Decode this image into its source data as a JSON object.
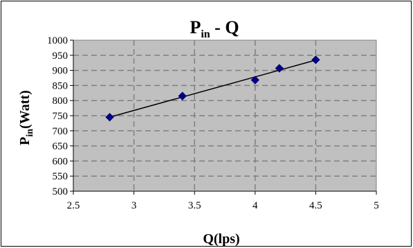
{
  "chart_data": {
    "type": "scatter",
    "title_main": "P",
    "title_sub": "in",
    "title_rest": " - Q",
    "xlabel": "Q(lps)",
    "ylabel_main": "P",
    "ylabel_sub": "in",
    "ylabel_rest": "(Watt)",
    "xlim": [
      2.5,
      5
    ],
    "ylim": [
      500,
      1000
    ],
    "x_ticks": [
      "2.5",
      "3",
      "3.5",
      "4",
      "4.5",
      "5"
    ],
    "y_ticks": [
      "500",
      "550",
      "600",
      "650",
      "700",
      "750",
      "800",
      "850",
      "900",
      "950",
      "1000"
    ],
    "grid": true,
    "trendline": "linear",
    "series": [
      {
        "x": [
          2.8,
          3.4,
          4.0,
          4.2,
          4.5
        ],
        "y": [
          745,
          815,
          868,
          907,
          935
        ]
      }
    ],
    "colors": {
      "plot_background": "#c0c0c0",
      "grid": "#7f7f7f",
      "marker": "#000080",
      "trendline": "#000000"
    }
  }
}
